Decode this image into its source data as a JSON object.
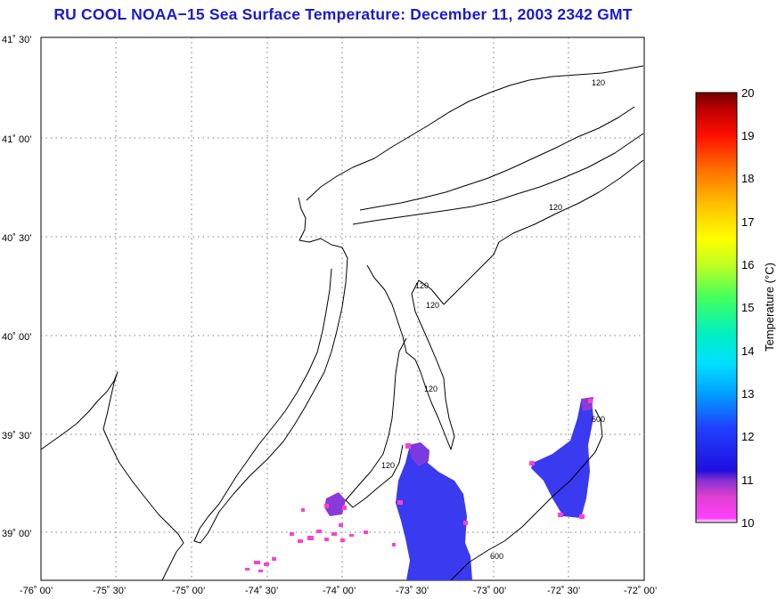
{
  "title": "RU COOL  NOAA−15  Sea Surface Temperature:  December 11, 2003 2342 GMT",
  "lat_labels": [
    "41˚ 30’",
    "41˚ 00’",
    "40˚ 30’",
    "40˚ 00’",
    "39˚ 30’",
    "39˚ 00’"
  ],
  "lon_labels": [
    "-76˚ 00’",
    "-75˚ 30’",
    "-75˚ 00’",
    "-74˚ 30’",
    "-74˚ 00’",
    "-73˚ 30’",
    "-73˚ 00’",
    "-72˚ 30’",
    "-72˚ 00’"
  ],
  "colorbar": {
    "label": "Temperature (°C)",
    "ticks": [
      "20",
      "19",
      "18",
      "17",
      "16",
      "15",
      "14",
      "13",
      "12",
      "11",
      "10"
    ],
    "min": 10,
    "max": 20
  },
  "contour_labels": [
    "120",
    "120",
    "120",
    "120",
    "120",
    "120",
    "600",
    "600"
  ],
  "colors": {
    "title": "#1a1ad0",
    "sst_blue": "#3a3af0",
    "sst_purple": "#8a3ad8",
    "sst_pink": "#ff40d0"
  }
}
